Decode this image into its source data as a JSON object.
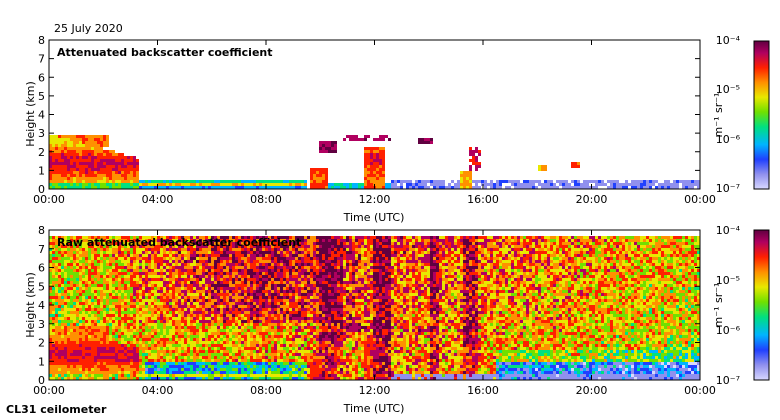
{
  "date_label": "25 July 2020",
  "source_label": "CL31 ceilometer",
  "colorbar": {
    "unit_label": "m⁻¹ sr⁻¹",
    "tick_labels": [
      "10⁻⁴",
      "10⁻⁵",
      "10⁻⁶",
      "10⁻⁷"
    ],
    "colors": [
      "#d8d8ff",
      "#9090ee",
      "#2040ff",
      "#00b4ff",
      "#00e080",
      "#70e000",
      "#e8e800",
      "#ff9000",
      "#ff2000",
      "#b00060",
      "#600040"
    ]
  },
  "chart_data": [
    {
      "type": "heatmap",
      "title": "Attenuated backscatter coefficient",
      "xlabel": "Time (UTC)",
      "ylabel": "Height (km)",
      "xlim": [
        "00:00",
        "00:00"
      ],
      "x_ticks": [
        "00:00",
        "04:00",
        "08:00",
        "12:00",
        "16:00",
        "20:00",
        "00:00"
      ],
      "ylim": [
        0,
        8
      ],
      "y_ticks": [
        "0",
        "1",
        "2",
        "3",
        "4",
        "5",
        "6",
        "7",
        "8"
      ],
      "color_scale": "log",
      "color_range": [
        1e-07,
        0.0001
      ]
    },
    {
      "type": "heatmap",
      "title": "Raw attenuated backscatter coefficient",
      "xlabel": "Time (UTC)",
      "ylabel": "Height (km)",
      "xlim": [
        "00:00",
        "00:00"
      ],
      "x_ticks": [
        "00:00",
        "04:00",
        "08:00",
        "12:00",
        "16:00",
        "20:00",
        "00:00"
      ],
      "ylim": [
        0,
        8
      ],
      "y_ticks": [
        "0",
        "1",
        "2",
        "3",
        "4",
        "5",
        "6",
        "7",
        "8"
      ],
      "color_scale": "log",
      "color_range": [
        1e-07,
        0.0001
      ]
    }
  ]
}
